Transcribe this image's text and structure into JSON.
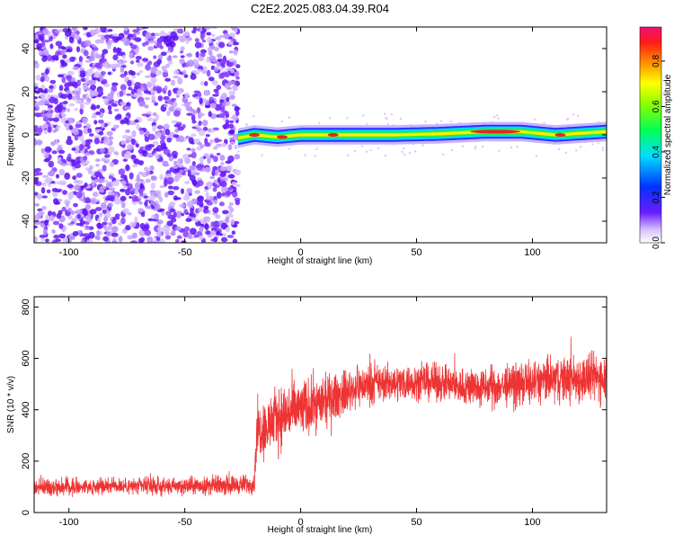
{
  "figure_title": "C2E2.2025.083.04.39.R04",
  "chart_data": [
    {
      "type": "heatmap",
      "title": "",
      "xlabel": "Height of straight line (km)",
      "ylabel": "Frequency (Hz)",
      "xlim": [
        -115,
        132
      ],
      "ylim": [
        -50,
        50
      ],
      "x_ticks": [
        "-100",
        "-50",
        "0",
        "50",
        "100"
      ],
      "y_ticks": [
        "-40",
        "-20",
        "0",
        "20",
        "40"
      ],
      "colorbar": {
        "label": "Normalized spectral amplitude",
        "range": [
          0,
          0.95
        ],
        "ticks": [
          "0.0",
          "0.2",
          "0.4",
          "0.6",
          "0.8"
        ],
        "colormap": "rainbow (violet to red)"
      },
      "regions": [
        {
          "name": "noise",
          "x_range": [
            -115,
            -27
          ],
          "y_range": [
            -50,
            50
          ],
          "amplitude_range": [
            0.0,
            0.15
          ]
        },
        {
          "name": "signal band",
          "x_range": [
            -27,
            132
          ],
          "y_center": 0.5,
          "y_halfwidth": 3,
          "amplitude_range": [
            0.2,
            0.95
          ]
        }
      ],
      "band_center_points": [
        {
          "x": -27,
          "y": -1.5
        },
        {
          "x": -20,
          "y": 0
        },
        {
          "x": -10,
          "y": -1
        },
        {
          "x": 0,
          "y": 0
        },
        {
          "x": 20,
          "y": 0
        },
        {
          "x": 40,
          "y": 0
        },
        {
          "x": 60,
          "y": 0.5
        },
        {
          "x": 80,
          "y": 1.5
        },
        {
          "x": 95,
          "y": 1.5
        },
        {
          "x": 110,
          "y": 0
        },
        {
          "x": 132,
          "y": 1.5
        }
      ],
      "peak_points": [
        {
          "x": -20,
          "y": 0
        },
        {
          "x": -8,
          "y": -1
        },
        {
          "x": 14,
          "y": 0
        },
        {
          "x": 84,
          "y": 1.5
        },
        {
          "x": 112,
          "y": 0
        }
      ]
    },
    {
      "type": "line",
      "title": "",
      "xlabel": "Height of straight line (km)",
      "ylabel": "SNR (10 * v/v)",
      "xlim": [
        -115,
        132
      ],
      "ylim": [
        0,
        840
      ],
      "x_ticks": [
        "-100",
        "-50",
        "0",
        "50",
        "100"
      ],
      "y_ticks": [
        "0",
        "200",
        "400",
        "600",
        "800"
      ],
      "color": "#ee3333",
      "series_envelope": {
        "x": [
          -115,
          -100,
          -80,
          -60,
          -40,
          -20,
          -19,
          -15,
          -10,
          -5,
          0,
          5,
          10,
          15,
          20,
          25,
          30,
          40,
          50,
          60,
          70,
          80,
          90,
          100,
          110,
          120,
          132
        ],
        "y_mean": [
          100,
          100,
          105,
          100,
          105,
          110,
          320,
          330,
          370,
          390,
          400,
          420,
          430,
          450,
          470,
          490,
          500,
          505,
          510,
          505,
          490,
          485,
          495,
          505,
          520,
          520,
          530
        ],
        "y_spread": [
          40,
          40,
          40,
          40,
          45,
          45,
          130,
          140,
          150,
          150,
          140,
          130,
          120,
          110,
          100,
          95,
          90,
          85,
          85,
          85,
          90,
          95,
          100,
          105,
          110,
          115,
          120
        ]
      }
    }
  ]
}
